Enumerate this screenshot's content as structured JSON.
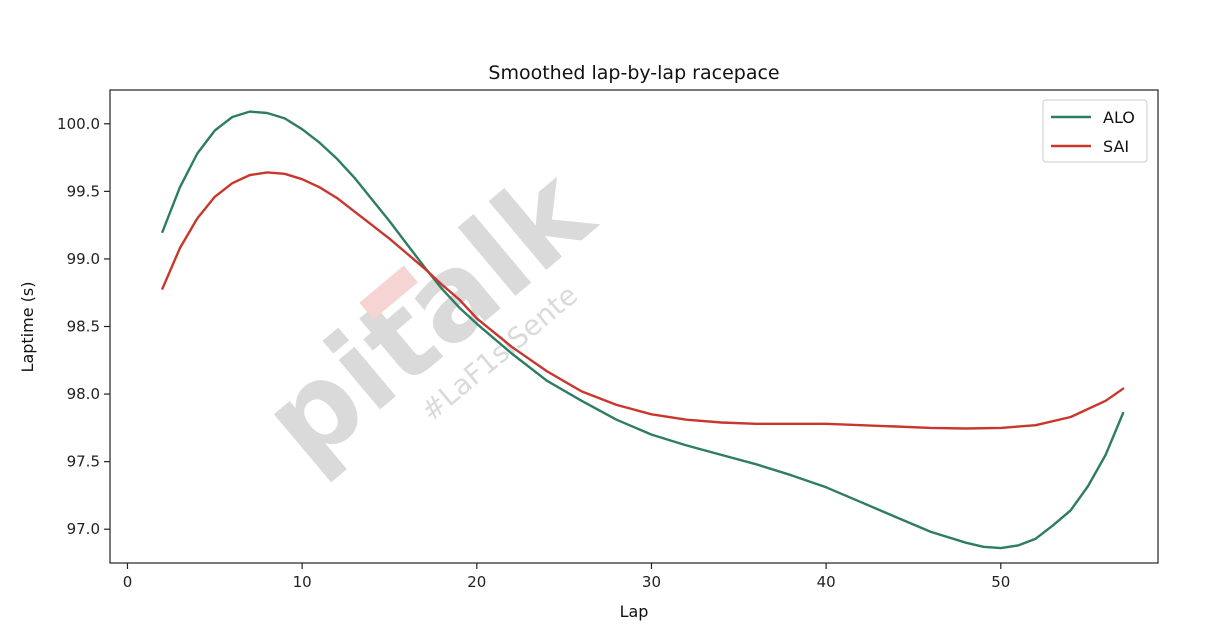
{
  "chart_data": {
    "type": "line",
    "title": "Smoothed lap-by-lap racepace",
    "xlabel": "Lap",
    "ylabel": "Laptime (s)",
    "xlim": [
      -1,
      59
    ],
    "ylim": [
      96.75,
      100.25
    ],
    "xticks": [
      0,
      10,
      20,
      30,
      40,
      50
    ],
    "yticks": [
      97.0,
      97.5,
      98.0,
      98.5,
      99.0,
      99.5,
      100.0
    ],
    "grid": false,
    "legend_position": "top-right",
    "series": [
      {
        "name": "ALO",
        "color": "#2e7d62",
        "x": [
          2,
          3,
          4,
          5,
          6,
          7,
          8,
          9,
          10,
          11,
          12,
          13,
          14,
          15,
          16,
          17,
          18,
          19,
          20,
          22,
          24,
          26,
          28,
          30,
          32,
          34,
          36,
          38,
          40,
          42,
          44,
          46,
          48,
          49,
          50,
          51,
          52,
          53,
          54,
          55,
          56,
          57
        ],
        "y": [
          99.2,
          99.53,
          99.78,
          99.95,
          100.05,
          100.09,
          100.08,
          100.04,
          99.96,
          99.86,
          99.74,
          99.6,
          99.44,
          99.28,
          99.11,
          98.94,
          98.78,
          98.64,
          98.52,
          98.3,
          98.1,
          97.95,
          97.81,
          97.7,
          97.62,
          97.55,
          97.48,
          97.4,
          97.31,
          97.2,
          97.09,
          96.98,
          96.9,
          96.87,
          96.86,
          96.88,
          96.93,
          97.03,
          97.14,
          97.32,
          97.55,
          97.86
        ]
      },
      {
        "name": "SAI",
        "color": "#c8372d",
        "x": [
          2,
          3,
          4,
          5,
          6,
          7,
          8,
          9,
          10,
          11,
          12,
          13,
          14,
          15,
          16,
          17,
          18,
          19,
          20,
          22,
          24,
          26,
          28,
          30,
          32,
          34,
          36,
          38,
          40,
          42,
          44,
          46,
          48,
          50,
          52,
          54,
          56,
          57
        ],
        "y": [
          98.78,
          99.08,
          99.3,
          99.46,
          99.56,
          99.62,
          99.64,
          99.63,
          99.59,
          99.53,
          99.45,
          99.35,
          99.25,
          99.15,
          99.04,
          98.93,
          98.81,
          98.7,
          98.56,
          98.35,
          98.17,
          98.02,
          97.92,
          97.85,
          97.81,
          97.79,
          97.78,
          97.78,
          97.78,
          97.77,
          97.76,
          97.75,
          97.745,
          97.75,
          97.77,
          97.83,
          97.95,
          98.04
        ]
      }
    ]
  },
  "watermark": {
    "brand": "pitalk",
    "tagline": "#LaF1siSente"
  }
}
